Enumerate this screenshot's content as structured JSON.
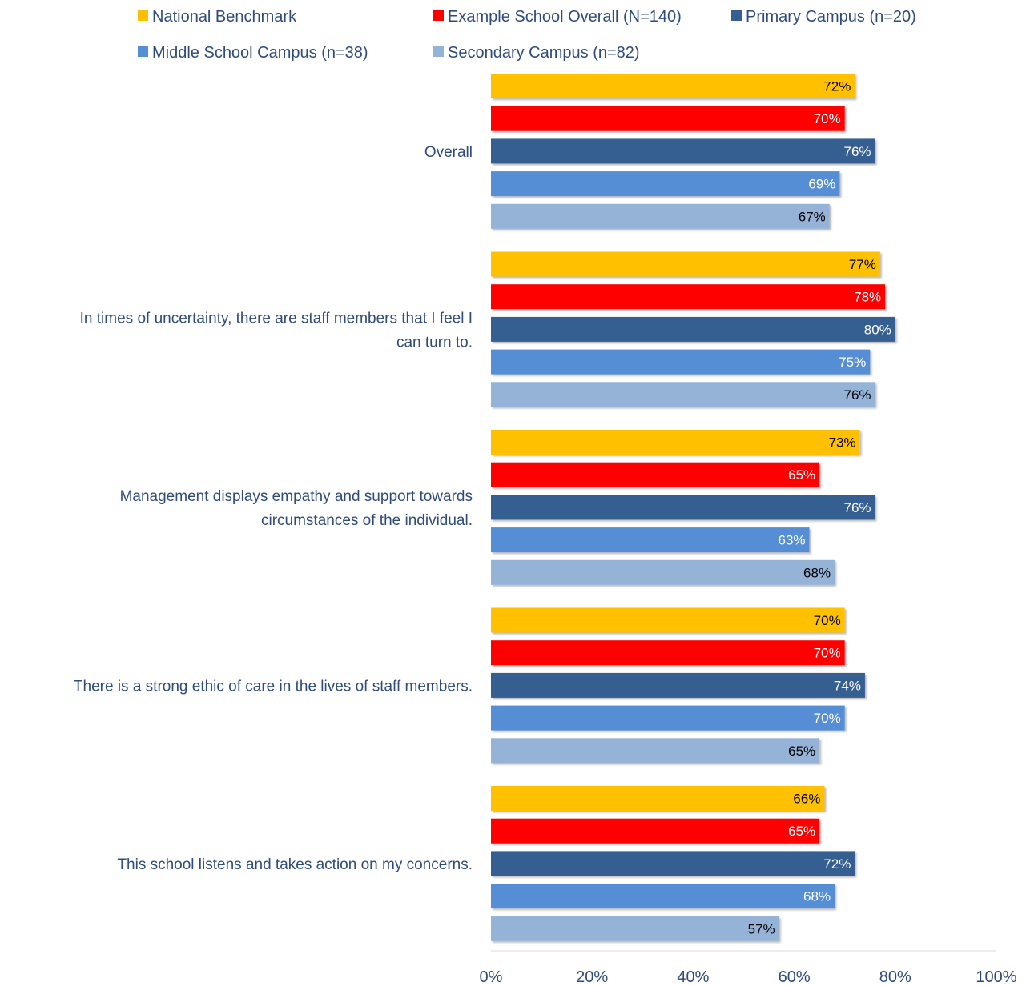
{
  "chart_data": {
    "type": "bar",
    "orientation": "horizontal",
    "categories": [
      "Overall",
      "In times of uncertainty, there are staff members that I feel I can turn to.",
      "Management displays empathy and support towards circumstances of the individual.",
      "There is a strong ethic of care in the lives of staff members.",
      "This school listens and takes action on my concerns."
    ],
    "category_lines": [
      [
        "Overall"
      ],
      [
        "In times of uncertainty, there are staff members that I feel I",
        "can turn to."
      ],
      [
        "Management displays empathy and support towards",
        "circumstances of the individual."
      ],
      [
        "There is a strong ethic of care in the lives of staff members."
      ],
      [
        "This school listens and takes action on my concerns."
      ]
    ],
    "series": [
      {
        "name": "National Benchmark",
        "color": "#ffc000",
        "label_color": "#000000",
        "values": [
          72,
          77,
          73,
          70,
          66
        ]
      },
      {
        "name": "Example School Overall (N=140)",
        "color": "#ff0000",
        "label_color": "#ffffff",
        "values": [
          70,
          78,
          65,
          70,
          65
        ]
      },
      {
        "name": "Primary Campus (n=20)",
        "color": "#355f91",
        "label_color": "#ffffff",
        "values": [
          76,
          80,
          76,
          74,
          72
        ]
      },
      {
        "name": "Middle School Campus (n=38)",
        "color": "#558ed5",
        "label_color": "#ffffff",
        "values": [
          69,
          75,
          63,
          70,
          68
        ]
      },
      {
        "name": "Secondary Campus (n=82)",
        "color": "#95b3d7",
        "label_color": "#000000",
        "values": [
          67,
          76,
          68,
          65,
          57
        ]
      }
    ],
    "value_suffix": "%",
    "xlim": [
      0,
      100
    ],
    "xticks": [
      0,
      20,
      40,
      60,
      80,
      100
    ],
    "xtick_labels": [
      "0%",
      "20%",
      "40%",
      "60%",
      "80%",
      "100%"
    ],
    "legend_position": "top",
    "grid": false
  }
}
